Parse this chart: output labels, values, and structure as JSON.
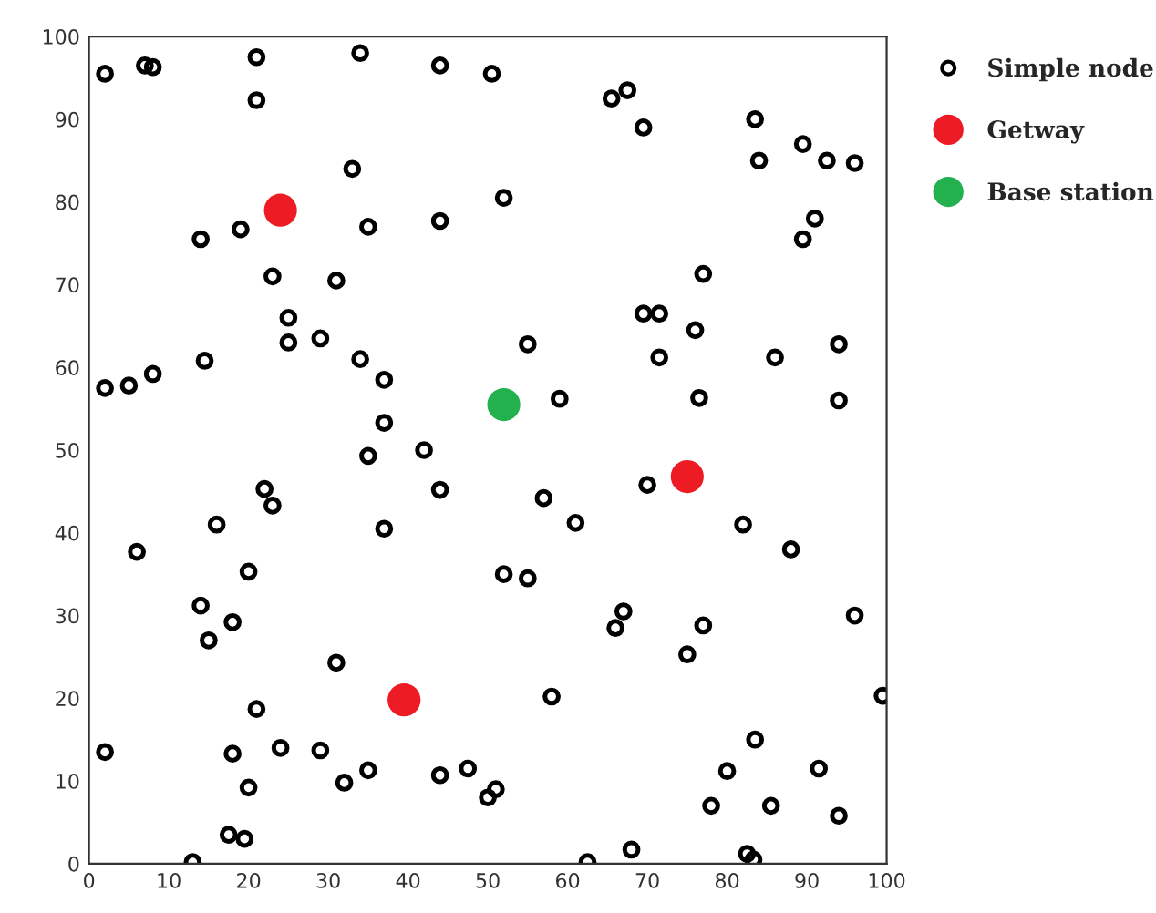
{
  "chart_data": {
    "type": "scatter",
    "legend": "top right",
    "marker": "circle",
    "xlim": [
      0,
      100
    ],
    "ylim": [
      0,
      100
    ],
    "xticks": [
      0,
      10,
      20,
      30,
      40,
      50,
      60,
      70,
      80,
      90,
      100
    ],
    "yticks": [
      0,
      10,
      20,
      30,
      40,
      50,
      60,
      70,
      80,
      90,
      100
    ],
    "series": [
      {
        "name": "Simple node",
        "color": "#000000",
        "x": [
          2,
          7,
          8,
          21,
          21,
          34,
          44,
          50.5,
          33,
          14,
          19,
          35,
          44,
          52,
          23,
          31,
          25,
          25,
          29,
          34,
          37,
          37,
          42,
          35,
          44,
          2,
          5,
          8,
          14.5,
          55,
          59,
          65.5,
          67.5,
          69.5,
          83.5,
          84,
          89.5,
          92.5,
          96,
          91,
          89.5,
          77,
          69.5,
          71.5,
          76,
          71.5,
          86,
          94,
          76.5,
          94,
          70,
          57,
          61,
          52,
          55,
          82,
          88,
          66,
          67,
          77,
          75,
          96,
          58,
          99.5,
          22,
          23,
          16,
          6,
          20,
          37,
          14,
          18,
          15,
          31,
          21,
          2,
          18,
          24,
          29,
          32,
          35,
          20,
          44,
          47.5,
          17.5,
          19.5,
          13,
          50,
          51,
          62.5,
          68,
          82.5,
          83.3,
          83.5,
          80,
          91.5,
          78,
          85.5,
          94
        ],
        "values": [
          95.5,
          96.5,
          96.3,
          97.5,
          92.3,
          98,
          96.5,
          95.5,
          84,
          75.5,
          76.7,
          77,
          77.7,
          80.5,
          71,
          70.5,
          66,
          63,
          63.5,
          61,
          58.5,
          53.3,
          50,
          49.3,
          45.2,
          57.5,
          57.8,
          59.2,
          60.8,
          62.8,
          56.2,
          92.5,
          93.5,
          89,
          90,
          85,
          87,
          85,
          84.7,
          78,
          75.5,
          71.3,
          66.5,
          66.5,
          64.5,
          61.2,
          61.2,
          62.8,
          56.3,
          56,
          45.8,
          44.2,
          41.2,
          35,
          34.5,
          41,
          38,
          28.5,
          30.5,
          28.8,
          25.3,
          30,
          20.2,
          20.3,
          45.3,
          43.3,
          41,
          37.7,
          35.3,
          40.5,
          31.2,
          29.2,
          27,
          24.3,
          18.7,
          13.5,
          13.3,
          14,
          13.7,
          9.8,
          11.3,
          9.2,
          10.7,
          11.5,
          3.5,
          3,
          0.2,
          8,
          9,
          0.2,
          1.7,
          1.2,
          0.5,
          15,
          11.2,
          11.5,
          7,
          7,
          5.8
        ]
      },
      {
        "name": "Getway",
        "color": "#ed1c24",
        "x": [
          24,
          39.5,
          75
        ],
        "values": [
          79,
          19.8,
          46.8
        ]
      },
      {
        "name": "Base station",
        "color": "#22b14c",
        "x": [
          52
        ],
        "values": [
          55.5
        ]
      }
    ]
  }
}
